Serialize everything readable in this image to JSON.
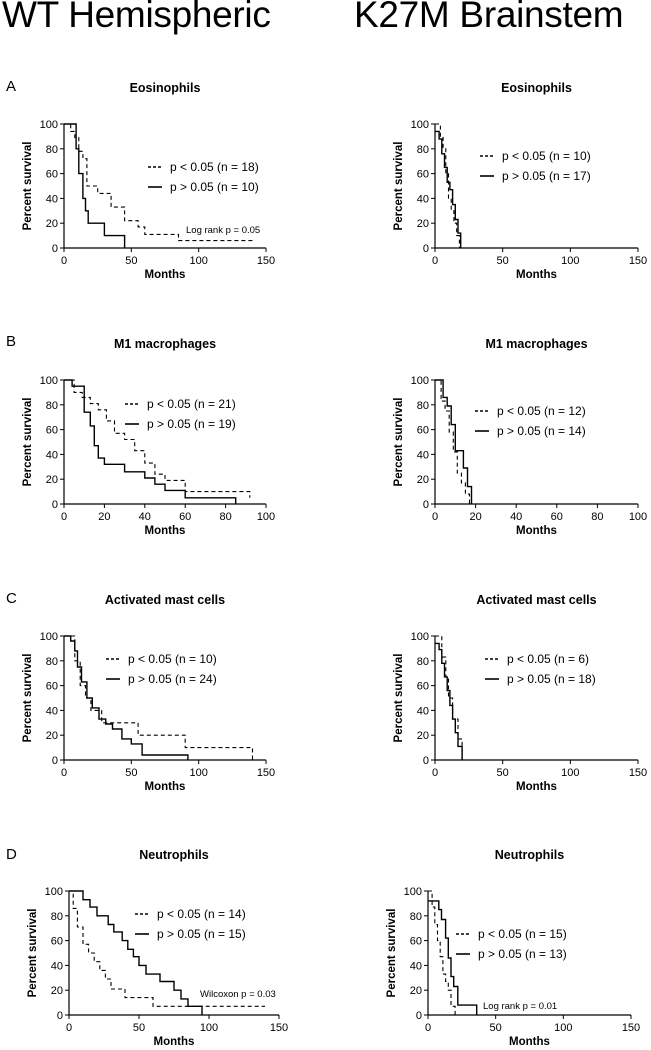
{
  "headers": {
    "left": "WT Hemispheric",
    "right": "K27M Brainstem"
  },
  "row_labels": [
    "A",
    "B",
    "C",
    "D"
  ],
  "chart_data": [
    {
      "id": "A-wt",
      "type": "line",
      "title": "Eosinophils",
      "xlabel": "Months",
      "ylabel": "Percent survival",
      "xlim": [
        0,
        150
      ],
      "xticks": [
        0,
        50,
        100,
        150
      ],
      "ylim": [
        0,
        100
      ],
      "yticks": [
        0,
        20,
        40,
        60,
        80,
        100
      ],
      "series": [
        {
          "name": "p < 0.05 (n = 18)",
          "style": "dashed",
          "x": [
            0,
            5,
            8,
            11,
            14,
            17,
            25,
            30,
            35,
            45,
            55,
            60,
            85,
            140
          ],
          "y": [
            100,
            94,
            89,
            78,
            72,
            50,
            44,
            44,
            33,
            22,
            17,
            11,
            6,
            6
          ]
        },
        {
          "name": "p > 0.05 (n = 10)",
          "style": "solid",
          "x": [
            0,
            7,
            9,
            11,
            14,
            16,
            18,
            25,
            30,
            45
          ],
          "y": [
            100,
            100,
            80,
            60,
            40,
            30,
            20,
            20,
            10,
            0
          ]
        }
      ],
      "annotation": "Log rank p = 0.05"
    },
    {
      "id": "A-k27m",
      "type": "line",
      "title": "Eosinophils",
      "xlabel": "Months",
      "ylabel": "Percent survival",
      "xlim": [
        0,
        150
      ],
      "xticks": [
        0,
        50,
        100,
        150
      ],
      "ylim": [
        0,
        100
      ],
      "yticks": [
        0,
        20,
        40,
        60,
        80,
        100
      ],
      "series": [
        {
          "name": "p < 0.05 (n = 10)",
          "style": "dashed",
          "x": [
            0,
            4,
            6,
            8,
            10,
            12,
            14,
            16,
            18
          ],
          "y": [
            100,
            90,
            80,
            60,
            40,
            30,
            20,
            10,
            0
          ]
        },
        {
          "name": "p > 0.05 (n = 17)",
          "style": "solid",
          "x": [
            0,
            3,
            5,
            7,
            9,
            11,
            13,
            15,
            17,
            19
          ],
          "y": [
            94,
            88,
            76,
            65,
            53,
            47,
            35,
            23,
            12,
            0
          ]
        }
      ],
      "annotation": ""
    },
    {
      "id": "B-wt",
      "type": "line",
      "title": "M1 macrophages",
      "xlabel": "Months",
      "ylabel": "Percent survival",
      "xlim": [
        0,
        100
      ],
      "xticks": [
        0,
        20,
        40,
        60,
        80,
        100
      ],
      "ylim": [
        0,
        100
      ],
      "yticks": [
        0,
        20,
        40,
        60,
        80,
        100
      ],
      "series": [
        {
          "name": "p < 0.05 (n = 21)",
          "style": "dashed",
          "x": [
            0,
            5,
            9,
            13,
            17,
            21,
            25,
            30,
            35,
            40,
            45,
            50,
            60,
            92
          ],
          "y": [
            100,
            90,
            86,
            81,
            76,
            67,
            57,
            52,
            43,
            33,
            24,
            19,
            10,
            5
          ]
        },
        {
          "name": "p > 0.05 (n = 19)",
          "style": "solid",
          "x": [
            0,
            4,
            10,
            13,
            15,
            17,
            20,
            25,
            30,
            35,
            40,
            45,
            50,
            60,
            85
          ],
          "y": [
            100,
            95,
            74,
            63,
            47,
            37,
            32,
            32,
            26,
            26,
            21,
            16,
            11,
            5,
            0
          ]
        }
      ],
      "annotation": ""
    },
    {
      "id": "B-k27m",
      "type": "line",
      "title": "M1 macrophages",
      "xlabel": "Months",
      "ylabel": "Percent survival",
      "xlim": [
        0,
        100
      ],
      "xticks": [
        0,
        20,
        40,
        60,
        80,
        100
      ],
      "ylim": [
        0,
        100
      ],
      "yticks": [
        0,
        20,
        40,
        60,
        80,
        100
      ],
      "series": [
        {
          "name": "p < 0.05 (n = 12)",
          "style": "dashed",
          "x": [
            0,
            3,
            5,
            7,
            9,
            11,
            13,
            15,
            17
          ],
          "y": [
            100,
            83,
            75,
            58,
            42,
            25,
            17,
            8,
            0
          ]
        },
        {
          "name": "p > 0.05 (n = 14)",
          "style": "solid",
          "x": [
            0,
            4,
            6,
            8,
            10,
            12,
            14,
            16,
            18
          ],
          "y": [
            100,
            86,
            79,
            64,
            43,
            43,
            29,
            14,
            0
          ]
        }
      ],
      "annotation": ""
    },
    {
      "id": "C-wt",
      "type": "line",
      "title": "Activated mast cells",
      "xlabel": "Months",
      "ylabel": "Percent survival",
      "xlim": [
        0,
        150
      ],
      "xticks": [
        0,
        50,
        100,
        150
      ],
      "ylim": [
        0,
        100
      ],
      "yticks": [
        0,
        20,
        40,
        60,
        80,
        100
      ],
      "series": [
        {
          "name": "p < 0.05 (n = 10)",
          "style": "dashed",
          "x": [
            0,
            8,
            12,
            16,
            20,
            28,
            40,
            55,
            90,
            140
          ],
          "y": [
            100,
            80,
            60,
            50,
            40,
            30,
            30,
            20,
            10,
            0
          ]
        },
        {
          "name": "p > 0.05 (n = 24)",
          "style": "solid",
          "x": [
            0,
            5,
            8,
            10,
            13,
            17,
            21,
            26,
            31,
            36,
            43,
            50,
            58,
            92
          ],
          "y": [
            100,
            96,
            88,
            75,
            63,
            50,
            42,
            33,
            29,
            25,
            17,
            13,
            4,
            0
          ]
        }
      ],
      "annotation": ""
    },
    {
      "id": "C-k27m",
      "type": "line",
      "title": "Activated mast cells",
      "xlabel": "Months",
      "ylabel": "Percent survival",
      "xlim": [
        0,
        150
      ],
      "xticks": [
        0,
        50,
        100,
        150
      ],
      "ylim": [
        0,
        100
      ],
      "yticks": [
        0,
        20,
        40,
        60,
        80,
        100
      ],
      "series": [
        {
          "name": "p < 0.05 (n = 6)",
          "style": "dashed",
          "x": [
            0,
            5,
            8,
            10,
            13,
            17,
            20
          ],
          "y": [
            100,
            83,
            67,
            50,
            33,
            17,
            0
          ]
        },
        {
          "name": "p > 0.05 (n = 18)",
          "style": "solid",
          "x": [
            0,
            3,
            5,
            7,
            9,
            11,
            13,
            15,
            17,
            20
          ],
          "y": [
            94,
            89,
            78,
            67,
            56,
            44,
            33,
            22,
            11,
            0
          ]
        }
      ],
      "annotation": ""
    },
    {
      "id": "D-wt",
      "type": "line",
      "title": "Neutrophils",
      "xlabel": "Months",
      "ylabel": "Percent survival",
      "xlim": [
        0,
        150
      ],
      "xticks": [
        0,
        50,
        100,
        150
      ],
      "ylim": [
        0,
        100
      ],
      "yticks": [
        0,
        20,
        40,
        60,
        80,
        100
      ],
      "series": [
        {
          "name": "p < 0.05 (n = 14)",
          "style": "dashed",
          "x": [
            0,
            3,
            6,
            10,
            14,
            18,
            22,
            26,
            30,
            35,
            40,
            55,
            60,
            140
          ],
          "y": [
            100,
            86,
            71,
            57,
            50,
            43,
            36,
            29,
            21,
            21,
            14,
            14,
            7,
            7
          ]
        },
        {
          "name": "p > 0.05 (n = 15)",
          "style": "solid",
          "x": [
            0,
            10,
            15,
            20,
            28,
            32,
            38,
            42,
            46,
            50,
            55,
            65,
            75,
            80,
            85,
            95
          ],
          "y": [
            100,
            93,
            87,
            80,
            73,
            67,
            60,
            53,
            47,
            40,
            33,
            27,
            20,
            13,
            7,
            0
          ]
        }
      ],
      "annotation": "Wilcoxon  p = 0.03"
    },
    {
      "id": "D-k27m",
      "type": "line",
      "title": "Neutrophils",
      "xlabel": "Months",
      "ylabel": "Percent survival",
      "xlim": [
        0,
        150
      ],
      "xticks": [
        0,
        50,
        100,
        150
      ],
      "ylim": [
        0,
        100
      ],
      "yticks": [
        0,
        20,
        40,
        60,
        80,
        100
      ],
      "series": [
        {
          "name": "p < 0.05 (n = 15)",
          "style": "dashed",
          "x": [
            0,
            3,
            5,
            7,
            9,
            11,
            13,
            15,
            17,
            20
          ],
          "y": [
            100,
            87,
            73,
            60,
            47,
            33,
            27,
            20,
            7,
            0
          ]
        },
        {
          "name": "p > 0.05 (n = 13)",
          "style": "solid",
          "x": [
            0,
            5,
            8,
            10,
            13,
            15,
            17,
            19,
            22,
            36
          ],
          "y": [
            92,
            92,
            85,
            77,
            62,
            46,
            31,
            23,
            8,
            0
          ]
        }
      ],
      "annotation": "Log rank p = 0.01"
    }
  ]
}
